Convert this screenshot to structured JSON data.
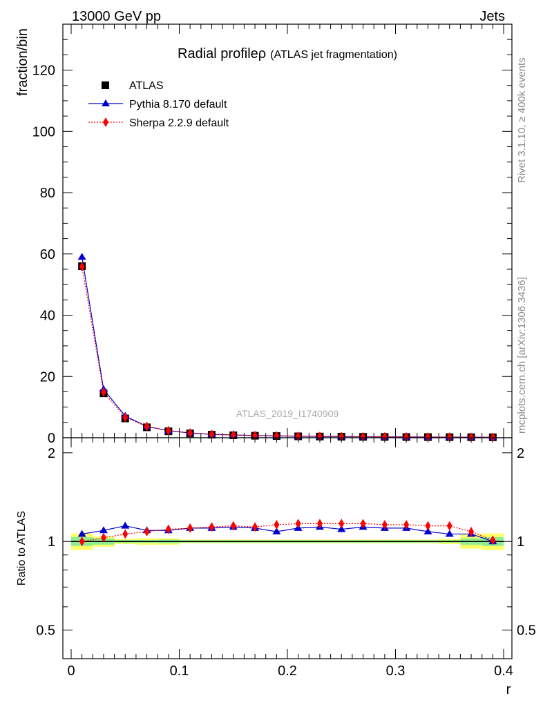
{
  "header": {
    "energy_label": "13000 GeV pp",
    "category_label": "Jets"
  },
  "side_labels": {
    "rivet": "Rivet 3.1.10, ≥ 400k events",
    "mcplots": "mcplots.cern.ch [arXiv:1306.3436]"
  },
  "watermark": "ATLAS_2019_I1740909",
  "chart_data": [
    {
      "type": "line",
      "title_main": "Radial profileρ",
      "title_sub": "(ATLAS jet fragmentation)",
      "ylabel": "fraction/bin",
      "xlim": [
        0,
        0.4
      ],
      "ylim": [
        0,
        135
      ],
      "yticks": [
        0,
        20,
        40,
        60,
        80,
        100,
        120
      ],
      "legend_placement": "top-left",
      "x": [
        0.01,
        0.03,
        0.05,
        0.07,
        0.09,
        0.11,
        0.13,
        0.15,
        0.17,
        0.19,
        0.21,
        0.23,
        0.25,
        0.27,
        0.29,
        0.31,
        0.33,
        0.35,
        0.37,
        0.39
      ],
      "series": [
        {
          "name": "ATLAS",
          "marker": "square",
          "color": "#000000",
          "values": [
            56.0,
            14.5,
            6.3,
            3.4,
            2.1,
            1.4,
            1.0,
            0.8,
            0.65,
            0.55,
            0.45,
            0.38,
            0.33,
            0.29,
            0.26,
            0.23,
            0.21,
            0.19,
            0.17,
            0.15
          ]
        },
        {
          "name": "Pythia 8.170 default",
          "marker": "triangle",
          "color": "#0000cc",
          "line": "solid",
          "values": [
            59.0,
            15.8,
            7.1,
            3.7,
            2.3,
            1.55,
            1.1,
            0.9,
            0.72,
            0.59,
            0.5,
            0.42,
            0.36,
            0.32,
            0.28,
            0.25,
            0.22,
            0.2,
            0.18,
            0.15
          ]
        },
        {
          "name": "Sherpa 2.2.9 default",
          "marker": "diamond",
          "color": "#ff0000",
          "line": "dotted",
          "values": [
            55.8,
            14.9,
            6.6,
            3.7,
            2.3,
            1.55,
            1.12,
            0.91,
            0.73,
            0.63,
            0.52,
            0.44,
            0.38,
            0.33,
            0.3,
            0.26,
            0.24,
            0.22,
            0.18,
            0.15
          ]
        }
      ]
    },
    {
      "type": "line",
      "ylabel": "Ratio to ATLAS",
      "xlabel": "r",
      "xlim": [
        0,
        0.4
      ],
      "xticks": [
        0,
        0.1,
        0.2,
        0.3,
        0.4
      ],
      "ylim": [
        0.4,
        2.25
      ],
      "yscale": "log",
      "yticks": [
        0.5,
        1,
        2
      ],
      "x": [
        0.01,
        0.03,
        0.05,
        0.07,
        0.09,
        0.11,
        0.13,
        0.15,
        0.17,
        0.19,
        0.21,
        0.23,
        0.25,
        0.27,
        0.29,
        0.31,
        0.33,
        0.35,
        0.37,
        0.39
      ],
      "reference_value": 1,
      "series": [
        {
          "name": "Pythia 8.170 default",
          "marker": "triangle",
          "color": "#0000cc",
          "line": "solid",
          "values": [
            1.06,
            1.09,
            1.13,
            1.09,
            1.09,
            1.11,
            1.11,
            1.12,
            1.11,
            1.08,
            1.11,
            1.12,
            1.1,
            1.12,
            1.11,
            1.11,
            1.08,
            1.06,
            1.06,
            1.0
          ]
        },
        {
          "name": "Sherpa 2.2.9 default",
          "marker": "diamond",
          "color": "#ff0000",
          "line": "dotted",
          "values": [
            1.0,
            1.03,
            1.06,
            1.08,
            1.1,
            1.11,
            1.12,
            1.13,
            1.12,
            1.14,
            1.15,
            1.15,
            1.15,
            1.15,
            1.14,
            1.14,
            1.13,
            1.13,
            1.08,
            1.01
          ]
        }
      ],
      "uncertainty_band": {
        "color_inner": "#90ee90",
        "color_outer": "#ffff66",
        "x_low": [
          0.0,
          0.02,
          0.04,
          0.06,
          0.08,
          0.1,
          0.12,
          0.14,
          0.16,
          0.18,
          0.2,
          0.22,
          0.24,
          0.26,
          0.28,
          0.3,
          0.32,
          0.34,
          0.36,
          0.38
        ],
        "x_high": [
          0.02,
          0.04,
          0.06,
          0.08,
          0.1,
          0.12,
          0.14,
          0.16,
          0.18,
          0.2,
          0.22,
          0.24,
          0.26,
          0.28,
          0.3,
          0.32,
          0.34,
          0.36,
          0.38,
          0.4
        ],
        "inner_half": [
          0.035,
          0.025,
          0.012,
          0.012,
          0.015,
          0.01,
          0.01,
          0.01,
          0.01,
          0.01,
          0.01,
          0.01,
          0.01,
          0.01,
          0.01,
          0.01,
          0.01,
          0.01,
          0.025,
          0.035
        ],
        "outer_half": [
          0.065,
          0.04,
          0.02,
          0.025,
          0.025,
          0.015,
          0.015,
          0.015,
          0.015,
          0.015,
          0.015,
          0.015,
          0.015,
          0.015,
          0.015,
          0.015,
          0.015,
          0.02,
          0.055,
          0.065
        ]
      }
    }
  ]
}
